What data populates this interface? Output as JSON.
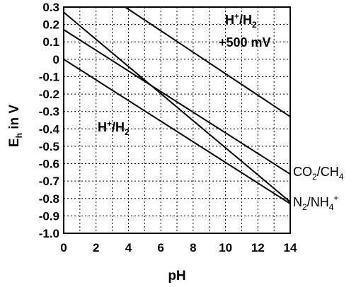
{
  "chart_data": {
    "type": "line",
    "xlabel": "pH",
    "ylabel": "E",
    "ylabel_sub": "h",
    "ylabel_suffix": " in V",
    "xlim": [
      0,
      14
    ],
    "ylim": [
      -1.0,
      0.3
    ],
    "xticks": [
      0,
      2,
      4,
      6,
      8,
      10,
      12,
      14
    ],
    "yticks": [
      0.3,
      0.2,
      0.1,
      0,
      -0.1,
      -0.2,
      -0.3,
      -0.4,
      -0.5,
      -0.6,
      -0.7,
      -0.8,
      -0.9,
      -1.0
    ],
    "ytick_labels": [
      "0.3",
      "0.2",
      "0.1",
      "0",
      "-0.1",
      "-0.2",
      "-0.3",
      "-0.4",
      "-0.5",
      "-0.6",
      "-0.7",
      "-0.8",
      "-0.9",
      "-1.0"
    ],
    "grid": true,
    "series": [
      {
        "name": "H+/H2 +500 mV",
        "x": [
          3.8,
          14
        ],
        "y": [
          0.3,
          -0.33
        ]
      },
      {
        "name": "H+/H2",
        "x": [
          0,
          14
        ],
        "y": [
          0.0,
          -0.83
        ]
      },
      {
        "name": "CO2/CH4",
        "x": [
          0,
          14
        ],
        "y": [
          0.17,
          -0.66
        ]
      },
      {
        "name": "N2/NH4+",
        "x": [
          0,
          14
        ],
        "y": [
          0.27,
          -0.82
        ]
      }
    ],
    "annotations": {
      "h_plus": "H",
      "plus": "+",
      "slash_h": "/H",
      "two": "2",
      "mv": "+500 mV",
      "co": "CO",
      "ch": "/CH",
      "four": "4",
      "n": "N",
      "nh": "/NH",
      "nh_sup": "+"
    }
  }
}
